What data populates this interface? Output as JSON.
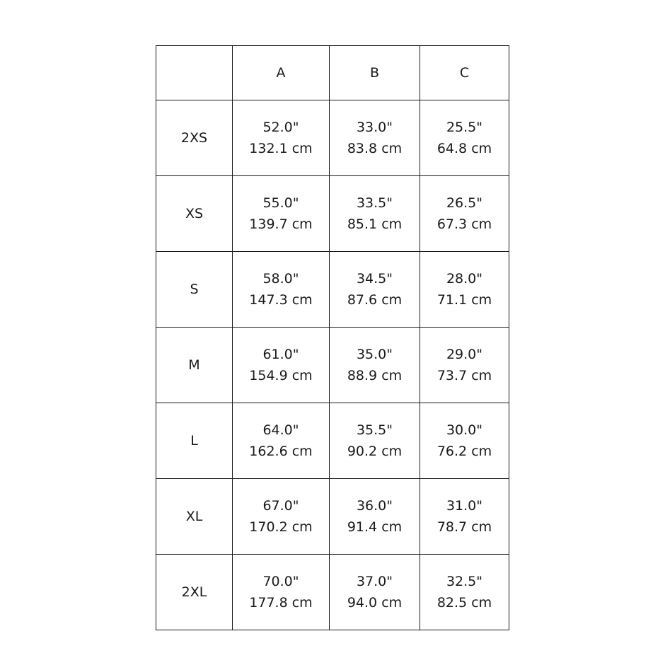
{
  "table": {
    "corner": "",
    "columns": [
      "A",
      "B",
      "C"
    ],
    "rows": [
      {
        "size": "2XS",
        "cells": [
          {
            "in": "52.0\"",
            "cm": "132.1 cm"
          },
          {
            "in": "33.0\"",
            "cm": "83.8 cm"
          },
          {
            "in": "25.5\"",
            "cm": "64.8 cm"
          }
        ]
      },
      {
        "size": "XS",
        "cells": [
          {
            "in": "55.0\"",
            "cm": "139.7 cm"
          },
          {
            "in": "33.5\"",
            "cm": "85.1 cm"
          },
          {
            "in": "26.5\"",
            "cm": "67.3 cm"
          }
        ]
      },
      {
        "size": "S",
        "cells": [
          {
            "in": "58.0\"",
            "cm": "147.3 cm"
          },
          {
            "in": "34.5\"",
            "cm": "87.6 cm"
          },
          {
            "in": "28.0\"",
            "cm": "71.1 cm"
          }
        ]
      },
      {
        "size": "M",
        "cells": [
          {
            "in": "61.0\"",
            "cm": "154.9 cm"
          },
          {
            "in": "35.0\"",
            "cm": "88.9 cm"
          },
          {
            "in": "29.0\"",
            "cm": "73.7 cm"
          }
        ]
      },
      {
        "size": "L",
        "cells": [
          {
            "in": "64.0\"",
            "cm": "162.6 cm"
          },
          {
            "in": "35.5\"",
            "cm": "90.2 cm"
          },
          {
            "in": "30.0\"",
            "cm": "76.2 cm"
          }
        ]
      },
      {
        "size": "XL",
        "cells": [
          {
            "in": "67.0\"",
            "cm": "170.2 cm"
          },
          {
            "in": "36.0\"",
            "cm": "91.4 cm"
          },
          {
            "in": "31.0\"",
            "cm": "78.7 cm"
          }
        ]
      },
      {
        "size": "2XL",
        "cells": [
          {
            "in": "70.0\"",
            "cm": "177.8 cm"
          },
          {
            "in": "37.0\"",
            "cm": "94.0 cm"
          },
          {
            "in": "32.5\"",
            "cm": "82.5 cm"
          }
        ]
      }
    ]
  }
}
